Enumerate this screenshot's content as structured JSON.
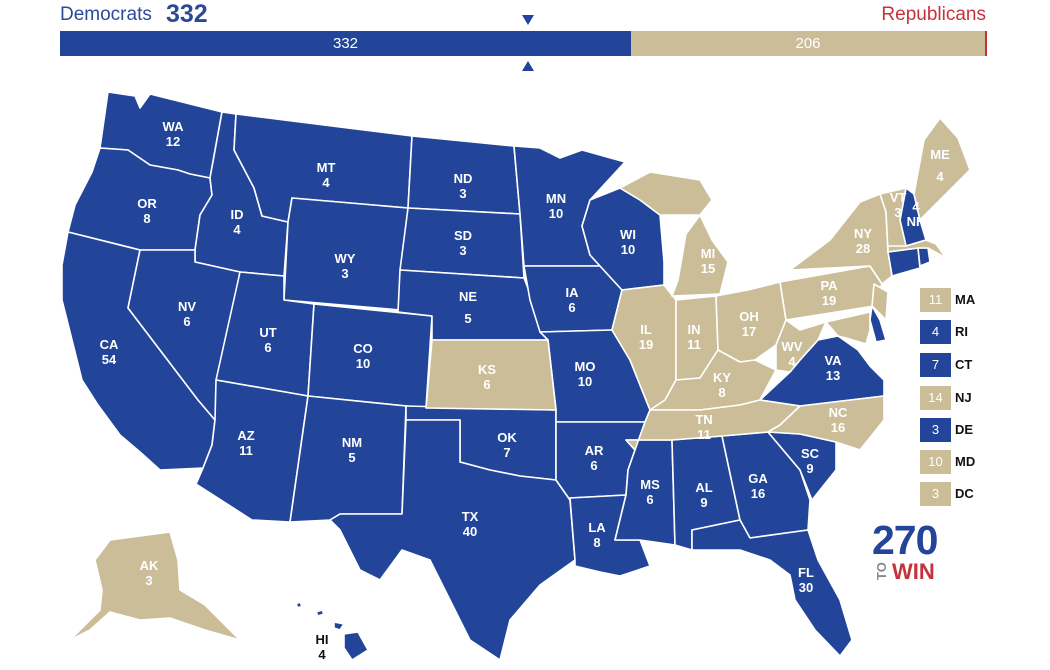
{
  "header": {
    "dem_label": "Democrats",
    "dem_total": "332",
    "rep_label": "Republicans"
  },
  "bar": {
    "dem_value": "332",
    "rep_value": "206"
  },
  "colors": {
    "democrat": "#22459a",
    "republican": "#cbbd98",
    "rep_accent": "#c6323b"
  },
  "states": {
    "WA": {
      "abbr": "WA",
      "ev": "12"
    },
    "OR": {
      "abbr": "OR",
      "ev": "8"
    },
    "CA": {
      "abbr": "CA",
      "ev": "54"
    },
    "ID": {
      "abbr": "ID",
      "ev": "4"
    },
    "NV": {
      "abbr": "NV",
      "ev": "6"
    },
    "MT": {
      "abbr": "MT",
      "ev": "4"
    },
    "WY": {
      "abbr": "WY",
      "ev": "3"
    },
    "UT": {
      "abbr": "UT",
      "ev": "6"
    },
    "AZ": {
      "abbr": "AZ",
      "ev": "11"
    },
    "CO": {
      "abbr": "CO",
      "ev": "10"
    },
    "NM": {
      "abbr": "NM",
      "ev": "5"
    },
    "ND": {
      "abbr": "ND",
      "ev": "3"
    },
    "SD": {
      "abbr": "SD",
      "ev": "3"
    },
    "NE": {
      "abbr": "NE",
      "ev": "5"
    },
    "KS": {
      "abbr": "KS",
      "ev": "6"
    },
    "OK": {
      "abbr": "OK",
      "ev": "7"
    },
    "TX": {
      "abbr": "TX",
      "ev": "40"
    },
    "MN": {
      "abbr": "MN",
      "ev": "10"
    },
    "IA": {
      "abbr": "IA",
      "ev": "6"
    },
    "MO": {
      "abbr": "MO",
      "ev": "10"
    },
    "AR": {
      "abbr": "AR",
      "ev": "6"
    },
    "LA": {
      "abbr": "LA",
      "ev": "8"
    },
    "WI": {
      "abbr": "WI",
      "ev": "10"
    },
    "IL": {
      "abbr": "IL",
      "ev": "19"
    },
    "MI": {
      "abbr": "MI",
      "ev": "15"
    },
    "IN": {
      "abbr": "IN",
      "ev": "11"
    },
    "OH": {
      "abbr": "OH",
      "ev": "17"
    },
    "KY": {
      "abbr": "KY",
      "ev": "8"
    },
    "TN": {
      "abbr": "TN",
      "ev": "11"
    },
    "MS": {
      "abbr": "MS",
      "ev": "6"
    },
    "AL": {
      "abbr": "AL",
      "ev": "9"
    },
    "GA": {
      "abbr": "GA",
      "ev": "16"
    },
    "FL": {
      "abbr": "FL",
      "ev": "30"
    },
    "SC": {
      "abbr": "SC",
      "ev": "9"
    },
    "NC": {
      "abbr": "NC",
      "ev": "16"
    },
    "VA": {
      "abbr": "VA",
      "ev": "13"
    },
    "WV": {
      "abbr": "WV",
      "ev": "4"
    },
    "PA": {
      "abbr": "PA",
      "ev": "19"
    },
    "NY": {
      "abbr": "NY",
      "ev": "28"
    },
    "VT": {
      "abbr": "VT",
      "ev": "3"
    },
    "NH": {
      "abbr": "NH",
      "ev": "4"
    },
    "ME": {
      "abbr": "ME",
      "ev": "4"
    },
    "AK": {
      "abbr": "AK",
      "ev": "3"
    },
    "HI": {
      "abbr": "HI",
      "ev": "4"
    }
  },
  "legend": [
    {
      "ev": "11",
      "abbr": "MA",
      "party": "republican"
    },
    {
      "ev": "4",
      "abbr": "RI",
      "party": "democrat"
    },
    {
      "ev": "7",
      "abbr": "CT",
      "party": "democrat"
    },
    {
      "ev": "14",
      "abbr": "NJ",
      "party": "republican"
    },
    {
      "ev": "3",
      "abbr": "DE",
      "party": "democrat"
    },
    {
      "ev": "10",
      "abbr": "MD",
      "party": "republican"
    },
    {
      "ev": "3",
      "abbr": "DC",
      "party": "republican"
    }
  ],
  "logo": {
    "number": "270",
    "to": "TO",
    "win": "WIN"
  }
}
